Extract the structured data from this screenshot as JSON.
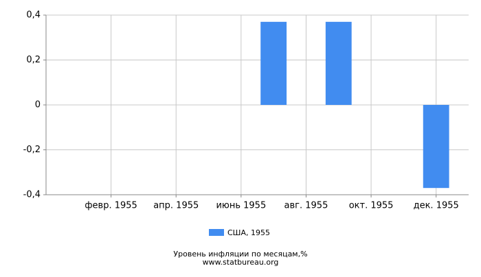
{
  "chart_data": {
    "type": "bar",
    "categories": [
      null,
      "февр. 1955",
      null,
      "апр. 1955",
      null,
      "июнь 1955",
      null,
      "авг. 1955",
      null,
      "окт. 1955",
      null,
      "дек. 1955"
    ],
    "series": [
      {
        "name": "США, 1955",
        "color": "#418cf0",
        "values": [
          0,
          0,
          0,
          0,
          0,
          0,
          0.37,
          0,
          0.37,
          0,
          0,
          -0.37
        ]
      }
    ],
    "ylim": [
      -0.4,
      0.4
    ],
    "yticks": [
      {
        "value": -0.4,
        "label": "-0,4"
      },
      {
        "value": -0.2,
        "label": "-0,2"
      },
      0,
      {
        "value": 0.2,
        "label": "0,2"
      },
      {
        "value": 0.4,
        "label": "0,4"
      }
    ],
    "grid": true,
    "footer": [
      "Уровень инфляции по месяцам,%",
      "www.statbureau.org"
    ]
  }
}
